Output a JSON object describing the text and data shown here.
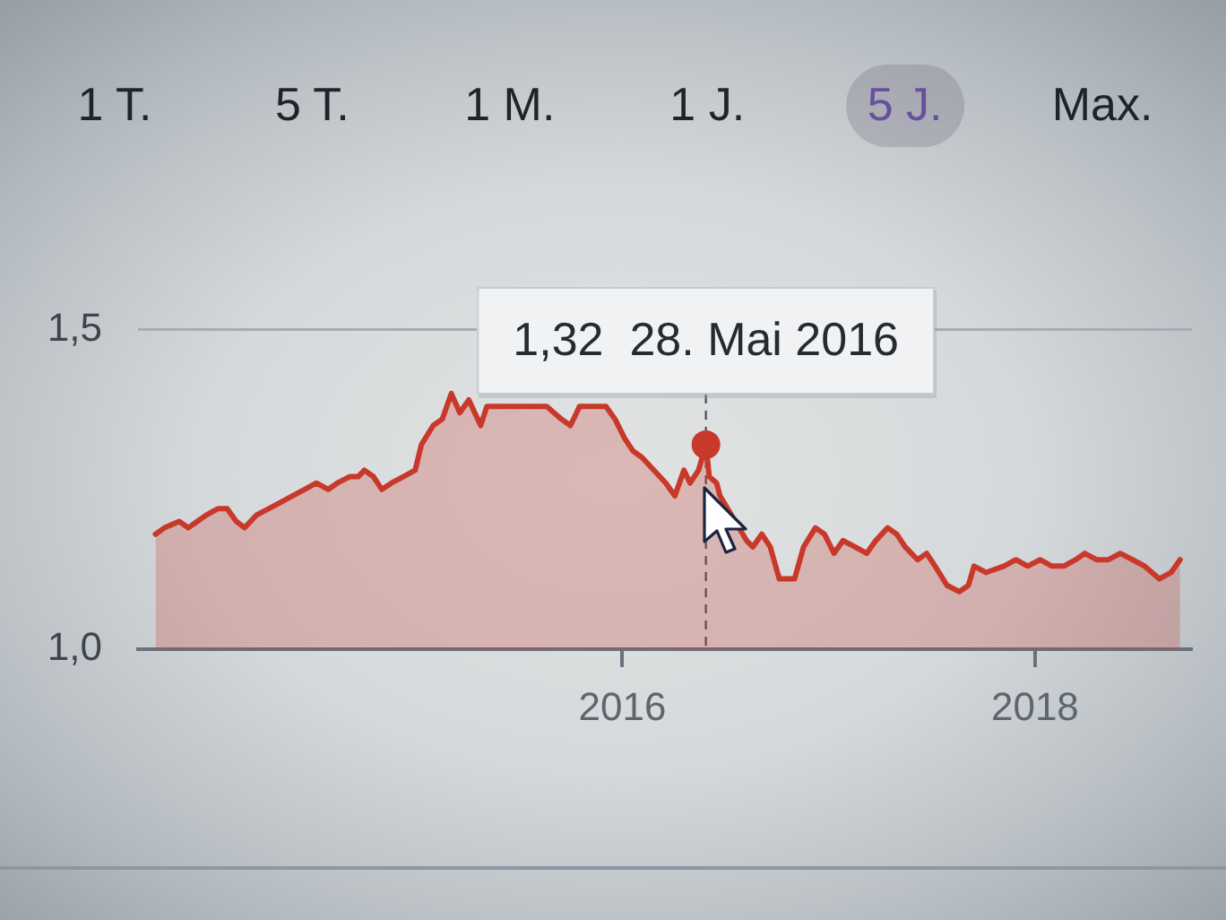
{
  "chart_data": {
    "type": "area",
    "annotations": [
      "1 T.",
      "5 T.",
      "1 M.",
      "1 J.",
      "5 J.",
      "Max.",
      {
        "text": "1,32  28. Mai 2016",
        "x": "2016-05-28",
        "y": 1.32
      }
    ],
    "xlim": [
      "2013-08-26",
      "2018-10-06"
    ],
    "xticks": [
      "2016",
      "2018"
    ],
    "ylim": [
      1.0,
      1.55
    ],
    "yticks": [
      {
        "value": 1.0,
        "label": "1,0"
      },
      {
        "value": 1.5,
        "label": "1,5"
      }
    ],
    "grid": "y",
    "legend": false,
    "ref_lines": [
      {
        "axis": "x",
        "value": "2016-05-28",
        "color": "#55595f",
        "line_style": "dashed"
      }
    ],
    "series": [
      {
        "type": "area",
        "color": "#c8392b",
        "x": [
          "2013-09-26",
          "2013-10-12",
          "2013-11-07",
          "2013-11-23",
          "2013-12-09",
          "2013-12-25",
          "2014-01-15",
          "2014-01-31",
          "2014-02-16",
          "2014-03-03",
          "2014-03-24",
          "2014-04-15",
          "2014-05-06",
          "2014-05-27",
          "2014-06-17",
          "2014-07-08",
          "2014-07-29",
          "2014-08-14",
          "2014-09-05",
          "2014-09-20",
          "2014-10-01",
          "2014-10-17",
          "2014-11-01",
          "2014-11-18",
          "2014-12-09",
          "2014-12-30",
          "2015-01-10",
          "2015-01-31",
          "2015-02-16",
          "2015-03-04",
          "2015-03-19",
          "2015-04-04",
          "2015-04-25",
          "2015-05-06",
          "2015-08-20",
          "2015-09-15",
          "2015-10-01",
          "2015-10-12",
          "2015-10-17",
          "2015-12-03",
          "2015-12-19",
          "2016-01-05",
          "2016-01-20",
          "2016-02-05",
          "2016-02-26",
          "2016-03-18",
          "2016-04-03",
          "2016-04-19",
          "2016-04-30",
          "2016-05-15",
          "2016-05-28",
          "2016-06-03",
          "2016-06-16",
          "2016-06-22",
          "2016-08-08",
          "2016-08-19",
          "2016-09-04",
          "2016-09-19",
          "2016-10-05",
          "2016-11-01",
          "2016-11-17",
          "2016-12-08",
          "2016-12-24",
          "2017-01-10",
          "2017-01-26",
          "2017-02-16",
          "2017-03-09",
          "2017-03-25",
          "2017-04-15",
          "2017-05-01",
          "2017-05-16",
          "2017-06-07",
          "2017-06-23",
          "2017-07-08",
          "2017-07-29",
          "2017-08-20",
          "2017-09-05",
          "2017-09-15",
          "2017-10-06",
          "2017-11-07",
          "2017-11-28",
          "2017-12-19",
          "2018-01-10",
          "2018-01-31",
          "2018-02-21",
          "2018-03-14",
          "2018-03-30",
          "2018-04-20",
          "2018-05-11",
          "2018-06-01",
          "2018-06-23",
          "2018-07-14",
          "2018-08-09",
          "2018-08-30",
          "2018-09-15"
        ],
        "values": [
          1.18,
          1.19,
          1.2,
          1.19,
          1.2,
          1.21,
          1.22,
          1.22,
          1.2,
          1.19,
          1.21,
          1.22,
          1.23,
          1.24,
          1.25,
          1.26,
          1.25,
          1.26,
          1.27,
          1.27,
          1.28,
          1.27,
          1.25,
          1.26,
          1.27,
          1.28,
          1.32,
          1.35,
          1.36,
          1.4,
          1.37,
          1.39,
          1.35,
          1.38,
          1.38,
          1.36,
          1.35,
          1.37,
          1.38,
          1.38,
          1.36,
          1.33,
          1.31,
          1.3,
          1.28,
          1.26,
          1.24,
          1.28,
          1.26,
          1.28,
          1.32,
          1.27,
          1.26,
          1.24,
          1.17,
          1.16,
          1.18,
          1.16,
          1.11,
          1.11,
          1.16,
          1.19,
          1.18,
          1.15,
          1.17,
          1.16,
          1.15,
          1.17,
          1.19,
          1.18,
          1.16,
          1.14,
          1.15,
          1.13,
          1.1,
          1.09,
          1.1,
          1.13,
          1.12,
          1.13,
          1.14,
          1.13,
          1.14,
          1.13,
          1.13,
          1.14,
          1.15,
          1.14,
          1.14,
          1.15,
          1.14,
          1.13,
          1.11,
          1.12,
          1.14
        ]
      },
      {
        "type": "scatter",
        "color": "#c8392b",
        "x": [
          "2016-05-28"
        ],
        "values": [
          1.32
        ],
        "marker": "circle"
      }
    ]
  }
}
